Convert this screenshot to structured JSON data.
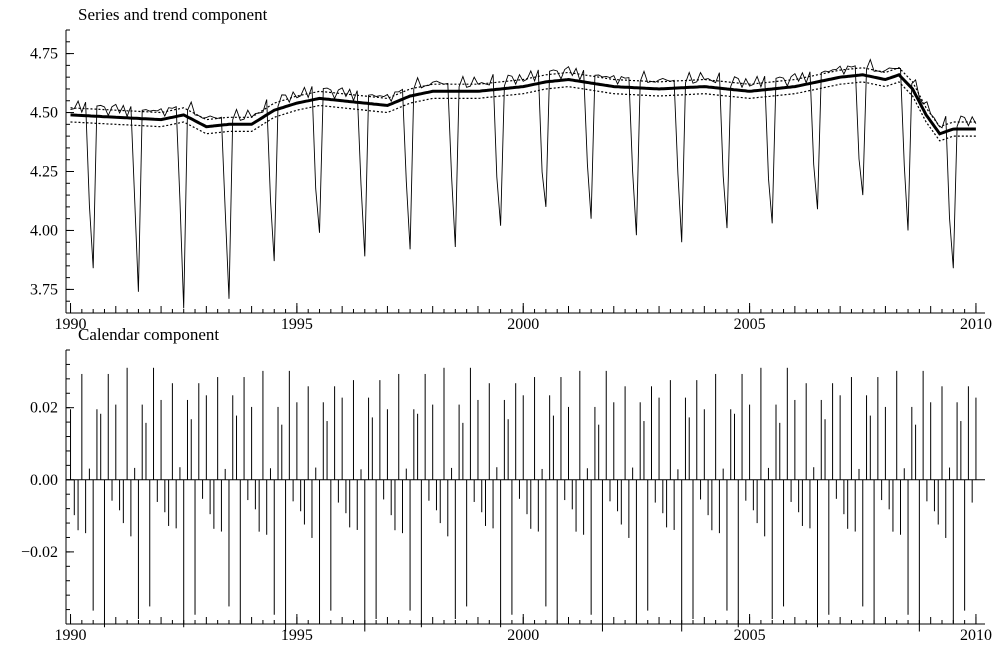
{
  "chart_data": [
    {
      "type": "line",
      "title": "Series and trend component",
      "xlabel": "",
      "ylabel": "",
      "xlim": [
        1989.9,
        2010.2
      ],
      "ylim": [
        3.65,
        4.85
      ],
      "xticks": [
        1990,
        1995,
        2000,
        2005,
        2010
      ],
      "yticks": [
        3.75,
        4.0,
        4.25,
        4.5,
        4.75
      ],
      "ytick_labels": [
        "3.75",
        "4.00",
        "4.25",
        "4.50",
        "4.75"
      ],
      "trend": {
        "x": [
          1990.0,
          1991.0,
          1992.0,
          1992.5,
          1993.0,
          1993.5,
          1994.0,
          1994.5,
          1995.0,
          1995.5,
          1996.0,
          1997.0,
          1997.5,
          1998.0,
          1999.0,
          2000.0,
          2000.5,
          2001.0,
          2002.0,
          2003.0,
          2004.0,
          2005.0,
          2006.0,
          2007.0,
          2007.5,
          2008.0,
          2008.3,
          2008.6,
          2008.9,
          2009.2,
          2009.5,
          2010.0
        ],
        "y": [
          4.49,
          4.48,
          4.47,
          4.49,
          4.44,
          4.45,
          4.45,
          4.51,
          4.54,
          4.56,
          4.55,
          4.53,
          4.57,
          4.59,
          4.59,
          4.61,
          4.63,
          4.64,
          4.61,
          4.6,
          4.61,
          4.59,
          4.61,
          4.65,
          4.66,
          4.64,
          4.66,
          4.6,
          4.49,
          4.41,
          4.43,
          4.43
        ],
        "band": 0.03
      },
      "series": {
        "base_offset": 0.06,
        "start": 1990.0,
        "step": 0.0833333,
        "seasonal": [
          0.07,
          0.05,
          0.08,
          0.04,
          0.09,
          -0.66,
          0.07,
          0.05,
          0.1,
          0.06,
          0.04,
          0.08
        ],
        "july_lows": [
          3.84,
          3.74,
          3.67,
          3.71,
          3.87,
          3.99,
          3.89,
          3.92,
          3.93,
          4.02,
          4.1,
          4.05,
          3.98,
          3.95,
          4.01,
          4.03,
          4.09,
          4.15,
          4.0,
          3.84
        ]
      }
    },
    {
      "type": "bar",
      "title": "Calendar component",
      "xlabel": "",
      "ylabel": "",
      "xlim": [
        1989.9,
        2010.2
      ],
      "ylim": [
        -0.04,
        0.036
      ],
      "xticks": [
        1990,
        1995,
        2000,
        2005,
        2010
      ],
      "yticks": [
        -0.02,
        0.0,
        0.02
      ],
      "ytick_labels": [
        "−0.02",
        "0.00",
        "0.02"
      ],
      "start": 1990.0,
      "step": 0.0833333,
      "pattern": [
        0.0215,
        -0.009,
        -0.0132,
        0.0285,
        -0.0148,
        0.0032,
        -0.0386,
        0.0215,
        0.0168,
        -0.0386,
        0.0285,
        -0.0058
      ]
    }
  ]
}
